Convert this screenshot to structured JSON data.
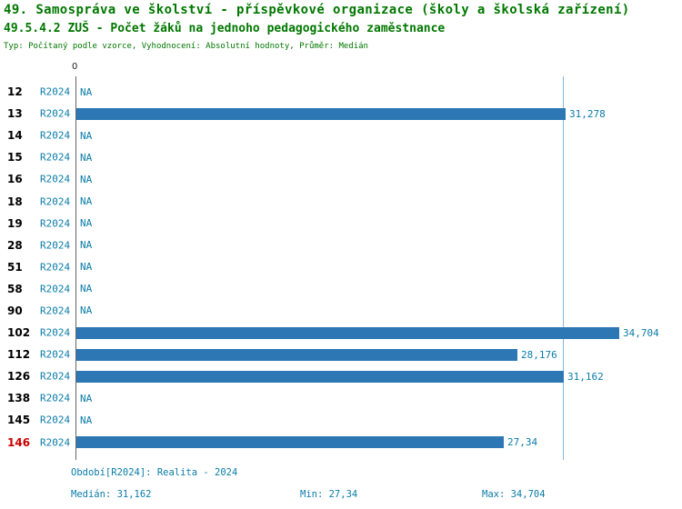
{
  "header": {
    "title_line1": "49. Samospráva ve školství - příspěvkové organizace (školy a školská zařízení)",
    "title_line2": "49.5.4.2 ZUŠ - Počet žáků na jednoho pedagogického zaměstnance",
    "subtitle": "Typ: Počítaný podle vzorce, Vyhodnocení: Absolutní hodnoty, Průměr: Medián"
  },
  "chart_data": {
    "type": "bar",
    "orientation": "horizontal",
    "title": "49.5.4.2 ZUŠ - Počet žáků na jednoho pedagogického zaměstnance",
    "series_label": "R2024",
    "axis": {
      "origin_label": "0",
      "xmin": 0,
      "xmax": 37.9,
      "median_line_value": 31.162,
      "grid": false
    },
    "rows": [
      {
        "label": "12",
        "value": null,
        "display": "NA"
      },
      {
        "label": "13",
        "value": 31.278,
        "display": "31,278"
      },
      {
        "label": "14",
        "value": null,
        "display": "NA"
      },
      {
        "label": "15",
        "value": null,
        "display": "NA"
      },
      {
        "label": "16",
        "value": null,
        "display": "NA"
      },
      {
        "label": "18",
        "value": null,
        "display": "NA"
      },
      {
        "label": "19",
        "value": null,
        "display": "NA"
      },
      {
        "label": "28",
        "value": null,
        "display": "NA"
      },
      {
        "label": "51",
        "value": null,
        "display": "NA"
      },
      {
        "label": "58",
        "value": null,
        "display": "NA"
      },
      {
        "label": "90",
        "value": null,
        "display": "NA"
      },
      {
        "label": "102",
        "value": 34.704,
        "display": "34,704"
      },
      {
        "label": "112",
        "value": 28.176,
        "display": "28,176"
      },
      {
        "label": "126",
        "value": 31.162,
        "display": "31,162"
      },
      {
        "label": "138",
        "value": null,
        "display": "NA"
      },
      {
        "label": "145",
        "value": null,
        "display": "NA"
      },
      {
        "label": "146",
        "value": 27.34,
        "display": "27,34",
        "highlight": true
      }
    ],
    "stats": {
      "median": 31.162,
      "min": 27.34,
      "max": 34.704
    }
  },
  "footer": {
    "period": "Období[R2024]: Realita - 2024",
    "median": "Medián: 31,162",
    "min": "Min: 27,34",
    "max": "Max: 34,704"
  },
  "colors": {
    "title_green": "#007700",
    "teal_text": "#0a7ca8",
    "bar_fill": "#2d78b4",
    "highlight_red": "#cc0000",
    "median_line": "#85b9e0",
    "axis_line": "#666666"
  }
}
